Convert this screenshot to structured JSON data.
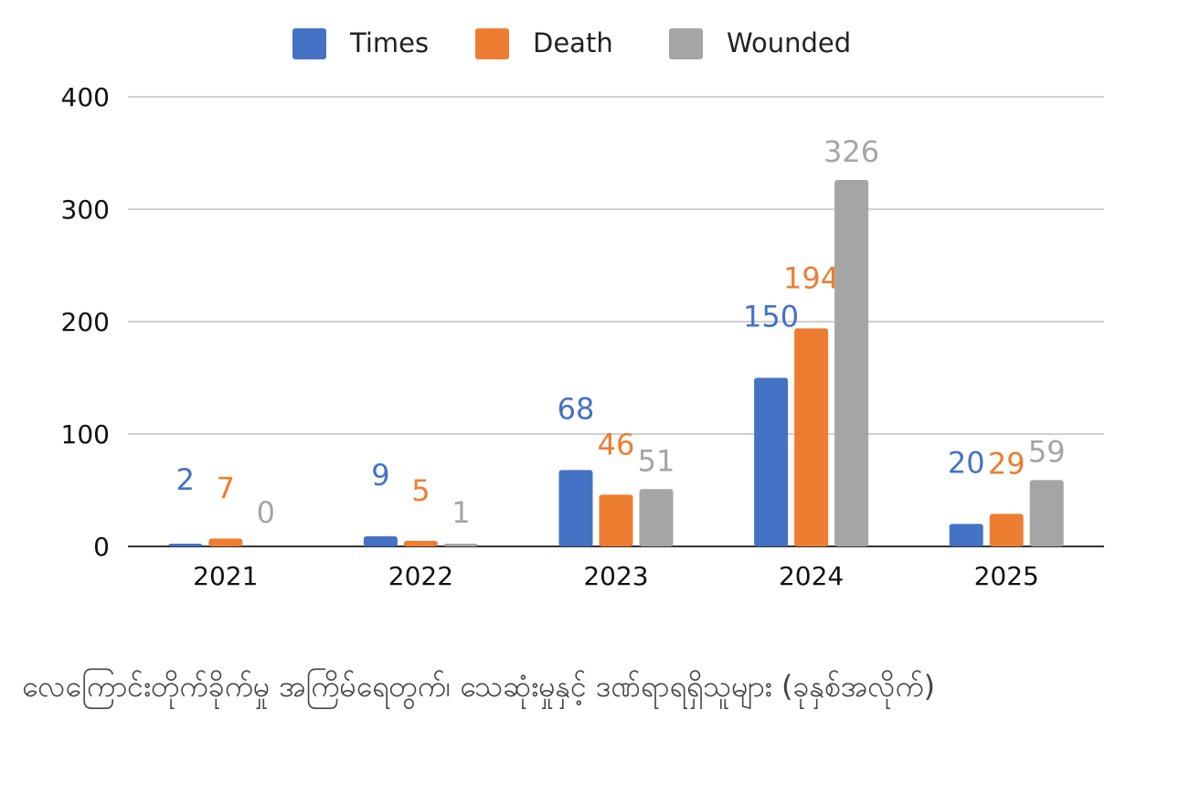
{
  "chart_data": {
    "type": "bar",
    "categories": [
      "2021",
      "2022",
      "2023",
      "2024",
      "2025"
    ],
    "series": [
      {
        "name": "Times",
        "color": "#4472c4",
        "values": [
          2,
          9,
          68,
          150,
          20
        ]
      },
      {
        "name": "Death",
        "color": "#ed7d31",
        "values": [
          7,
          5,
          46,
          194,
          29
        ]
      },
      {
        "name": "Wounded",
        "color": "#a5a5a5",
        "values": [
          0,
          1,
          51,
          326,
          59
        ]
      }
    ],
    "yticks": [
      "0",
      "100",
      "200",
      "300",
      "400"
    ],
    "ylim": [
      0,
      400
    ],
    "grid": true,
    "legend": "top-center",
    "data_labels": true
  },
  "caption": "လေကြောင်းတိုက်ခိုက်မှု အကြိမ်ရေတွက်၊ သေဆုံးမှုနှင့် ဒဏ်ရာရရှိသူများ (ခုနှစ်အလိုက်)",
  "colors": {
    "grid": "#d0d0d0",
    "axis": "#333333"
  }
}
